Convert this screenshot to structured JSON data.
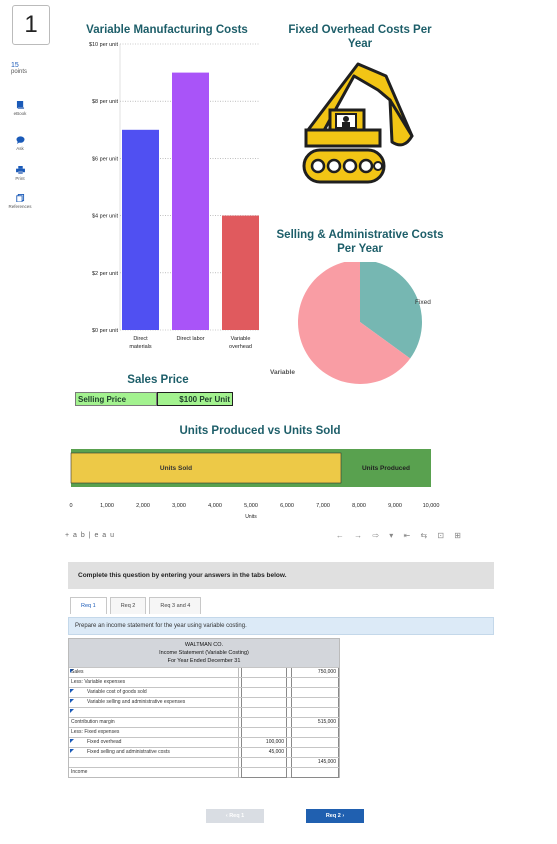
{
  "question": {
    "number": "1",
    "points_value": "15",
    "points_label": "points"
  },
  "rail": [
    {
      "label": "eBook",
      "icon": "book-icon"
    },
    {
      "label": "Ask",
      "icon": "chat-icon"
    },
    {
      "label": "Print",
      "icon": "printer-icon"
    },
    {
      "label": "References",
      "icon": "references-icon"
    }
  ],
  "colors": {
    "direct_materials": "#5050f2",
    "direct_labor": "#a954f8",
    "variable_overhead": "#e05a5e",
    "title": "#1d5e69",
    "pie_variable": "#f99da4",
    "pie_fixed": "#76b7b2",
    "units_sold_fill": "#edc947",
    "units_produced_fill": "#59a14f"
  },
  "dashboard": {
    "variable_costs_title": "Variable Manufacturing Costs",
    "fixed_overhead_title": "Fixed Overhead Costs Per Year",
    "sga_title": "Selling & Administrative Costs Per Year",
    "sales_price_title": "Sales Price",
    "selling_price_label": "Selling Price",
    "selling_price_value": "$100 Per Unit",
    "units_title": "Units Produced vs Units Sold"
  },
  "chart_data": [
    {
      "type": "bar",
      "title": "Variable Manufacturing Costs",
      "categories": [
        "Direct\nmaterials",
        "Direct labor",
        "Variable\noverhead"
      ],
      "values": [
        7,
        9,
        4
      ],
      "y_ticks": [
        "$0 per unit",
        "$2 per unit",
        "$4 per unit",
        "$6 per unit",
        "$8 per unit",
        "$10 per unit"
      ],
      "ylim": [
        0,
        10
      ],
      "grid": true
    },
    {
      "type": "pie",
      "title": "Selling & Administrative Costs Per Year",
      "slices": [
        {
          "label": "Fixed",
          "value": 35
        },
        {
          "label": "Variable",
          "value": 65
        }
      ]
    },
    {
      "type": "bar",
      "orientation": "horizontal",
      "title": "Units Produced vs Units Sold",
      "series": [
        {
          "name": "Units Sold",
          "value": 7500
        },
        {
          "name": "Units Produced",
          "value": 10000
        }
      ],
      "x_ticks": [
        "0",
        "1,000",
        "2,000",
        "3,000",
        "4,000",
        "5,000",
        "6,000",
        "7,000",
        "8,000",
        "9,000",
        "10,000"
      ],
      "xlim": [
        0,
        10000
      ],
      "xlabel": "Units"
    }
  ],
  "tableau": {
    "logo": "+ a b | e a u",
    "controls": "← → ⇨ ▾ ⇤ ⇆ ⊡ ⊞"
  },
  "instruction": "Complete this question by entering your answers in the tabs below.",
  "tabs": [
    "Req 1",
    "Req 2",
    "Req 3 and 4"
  ],
  "prompt": "Prepare an income statement for the year using variable costing.",
  "statement": {
    "company": "WALTMAN CO.",
    "title": "Income Statement (Variable Costing)",
    "period": "For Year Ended December 31",
    "rows": [
      {
        "label": "Sales",
        "col1": "",
        "col2": "750,000",
        "dollar": "$",
        "indent": false,
        "flag": true
      },
      {
        "label": "Less: Variable expenses",
        "col1": "",
        "col2": "",
        "indent": false,
        "flag": false
      },
      {
        "label": "Variable cost of goods sold",
        "col1": "",
        "col2": "",
        "indent": true,
        "flag": true
      },
      {
        "label": "Variable selling and administrative expenses",
        "col1": "",
        "col2": "",
        "indent": true,
        "flag": true
      },
      {
        "label": "",
        "col1": "",
        "col2": "",
        "indent": false,
        "flag": true
      },
      {
        "label": "Contribution margin",
        "col1": "",
        "col2": "515,000",
        "indent": false,
        "flag": false
      },
      {
        "label": "Less: Fixed expenses",
        "col1": "",
        "col2": "",
        "indent": false,
        "flag": false
      },
      {
        "label": "Fixed overhead",
        "col1": "100,000",
        "col2": "",
        "indent": true,
        "flag": true
      },
      {
        "label": "Fixed selling and administrative costs",
        "col1": "45,000",
        "col2": "",
        "indent": true,
        "flag": true
      },
      {
        "label": "",
        "col1": "",
        "col2": "145,000",
        "indent": false,
        "flag": false
      },
      {
        "label": "Income",
        "col1": "",
        "col2": "",
        "indent": false,
        "flag": false
      }
    ]
  },
  "nav": {
    "prev_label": "‹  Req 1",
    "next_label": "Req 2  ›"
  }
}
